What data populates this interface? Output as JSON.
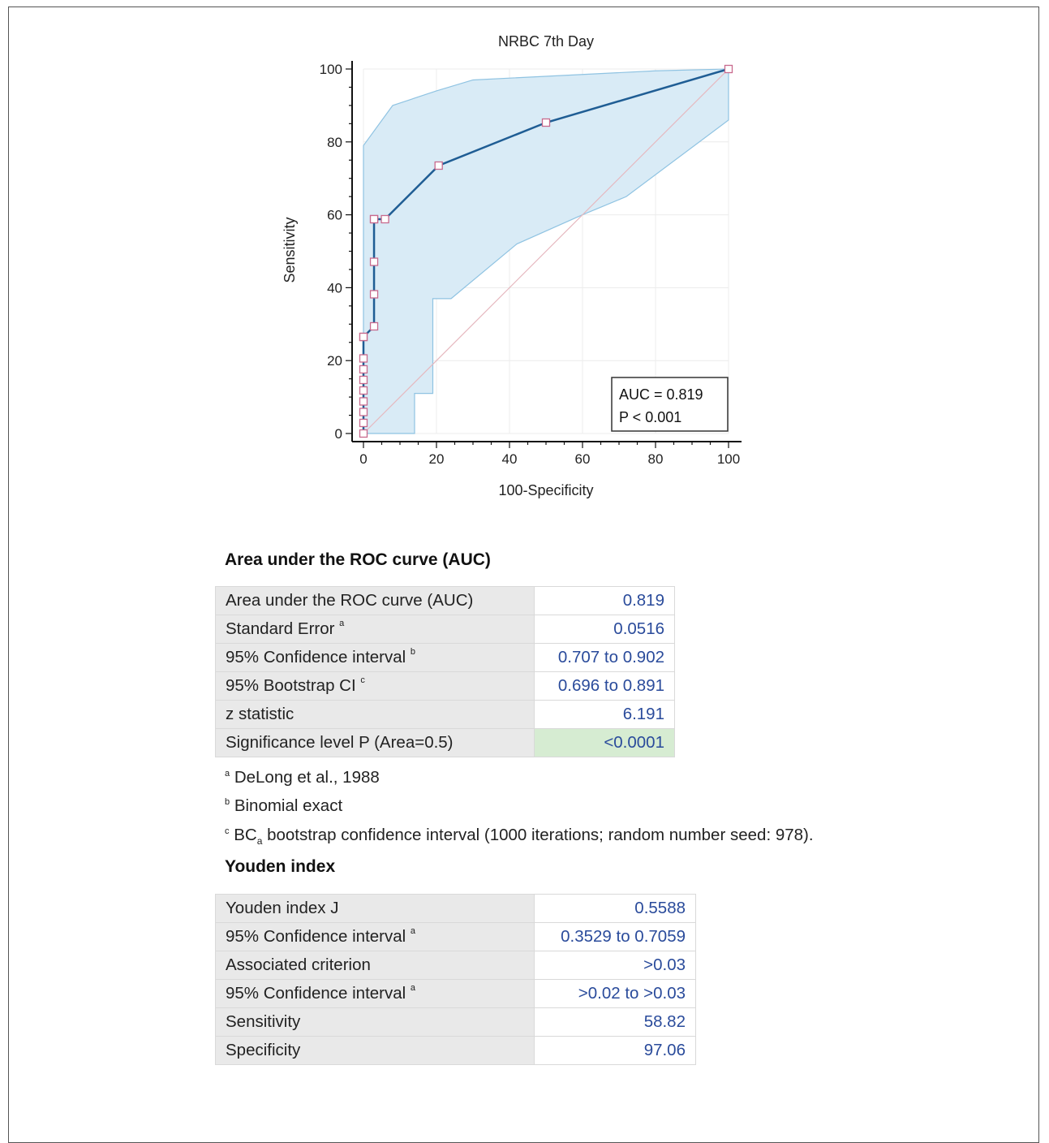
{
  "chart_data": {
    "type": "line",
    "title": "NRBC 7th Day",
    "xlabel": "100-Specificity",
    "ylabel": "Sensitivity",
    "xlim": [
      0,
      100
    ],
    "ylim": [
      0,
      100
    ],
    "xticks": [
      0,
      20,
      40,
      60,
      80,
      100
    ],
    "yticks": [
      0,
      20,
      40,
      60,
      80,
      100
    ],
    "series": [
      {
        "values_x": [
          0,
          0,
          0,
          0,
          0,
          0,
          0,
          0,
          0,
          0,
          2.9,
          2.9,
          2.9,
          2.9,
          2.9,
          5.9,
          20.6,
          50,
          100
        ],
        "values_y": [
          0,
          2.9,
          5.9,
          8.8,
          11.8,
          14.7,
          17.6,
          20.6,
          26.5,
          26.5,
          29.4,
          38.2,
          47.1,
          58.8,
          58.8,
          58.8,
          73.5,
          85.3,
          100
        ]
      }
    ],
    "confidence_band": {
      "upper_x": [
        0,
        0,
        8,
        20,
        30,
        60,
        80,
        100
      ],
      "upper_y": [
        0,
        79,
        90,
        94,
        97,
        98.5,
        99.5,
        100
      ],
      "lower_x": [
        0,
        14,
        14,
        19,
        19,
        24,
        42,
        60,
        72,
        100,
        100
      ],
      "lower_y": [
        0,
        0,
        11,
        11,
        37,
        37,
        52,
        60,
        65,
        86,
        100
      ]
    },
    "annotation": [
      "AUC = 0.819",
      "P < 0.001"
    ],
    "colors": {
      "curve": "#1f5d94",
      "band_fill": "#d9ebf6",
      "band_edge": "#8fc3e2",
      "marker_edge": "#c86a8d",
      "diagonal": "#e6b8bf"
    }
  },
  "auc_section": {
    "title": "Area under the ROC curve (AUC)",
    "rows": [
      {
        "label": "Area under the ROC curve (AUC)",
        "sup": "",
        "value": "0.819"
      },
      {
        "label": "Standard Error",
        "sup": "a",
        "value": "0.0516"
      },
      {
        "label": "95% Confidence interval",
        "sup": "b",
        "value": "0.707 to 0.902"
      },
      {
        "label": "95% Bootstrap CI",
        "sup": "c",
        "value": "0.696 to 0.891"
      },
      {
        "label": "z statistic",
        "sup": "",
        "value": "6.191"
      },
      {
        "label": "Significance level P (Area=0.5)",
        "sup": "",
        "value": "<0.0001"
      }
    ],
    "notes": {
      "a_mark": "a",
      "a_text": "DeLong et al., 1988",
      "b_mark": "b",
      "b_text": "Binomial exact",
      "c_mark": "c",
      "c_prefix": "BC",
      "c_sub": "a",
      "c_text": "bootstrap confidence interval (1000 iterations; random number seed: 978)."
    }
  },
  "youden_section": {
    "title": "Youden index",
    "rows": [
      {
        "label": "Youden index J",
        "sup": "",
        "value": "0.5588"
      },
      {
        "label": "95% Confidence interval",
        "sup": "a",
        "value": "0.3529 to 0.7059"
      },
      {
        "label": "Associated criterion",
        "sup": "",
        "value": ">0.03"
      },
      {
        "label": "95% Confidence interval",
        "sup": "a",
        "value": ">0.02 to >0.03"
      },
      {
        "label": "Sensitivity",
        "sup": "",
        "value": "58.82"
      },
      {
        "label": "Specificity",
        "sup": "",
        "value": "97.06"
      }
    ]
  }
}
